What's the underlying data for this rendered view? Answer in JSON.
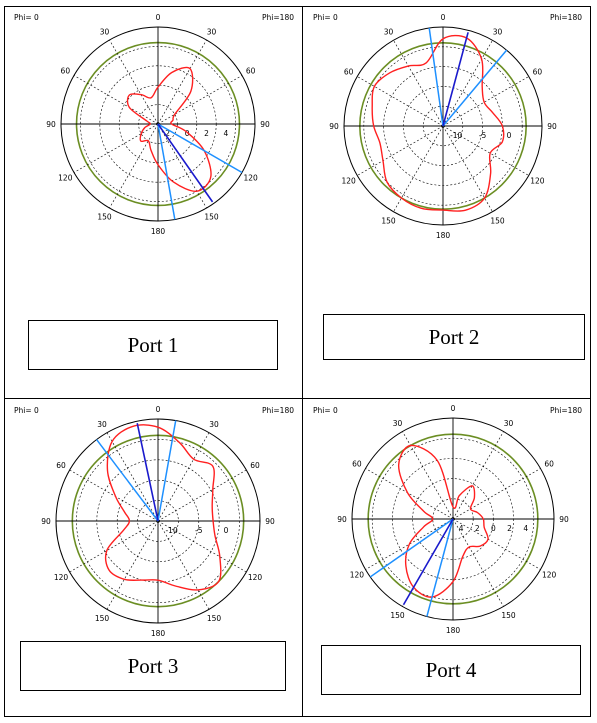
{
  "colors": {
    "pattern": "#ff2020",
    "reference_circle": "#6b8e23",
    "main_lobe_line": "#1a1acc",
    "beamwidth_line": "#1e90ff",
    "grid": "#000000"
  },
  "chart_data": [
    {
      "type": "polar-line",
      "caption": "Port 1",
      "phi_left": "Phi= 0",
      "phi_right": "Phi=180",
      "angle_labels": [
        "0",
        "30",
        "60",
        "90",
        "120",
        "150",
        "180",
        "150",
        "120",
        "90",
        "60",
        "30"
      ],
      "radial_labels": [
        "2",
        "0",
        "2",
        "4"
      ],
      "series_name": "",
      "theta_deg": [
        0,
        15,
        30,
        45,
        60,
        75,
        90,
        105,
        120,
        135,
        150,
        165,
        180,
        195,
        210,
        225,
        240,
        255,
        270,
        285,
        300,
        315,
        330,
        345
      ],
      "radius_fraction": [
        0.38,
        0.55,
        0.66,
        0.48,
        0.2,
        0.16,
        0.14,
        0.3,
        0.55,
        0.77,
        0.8,
        0.62,
        0.42,
        0.28,
        0.2,
        0.25,
        0.2,
        0.14,
        0.08,
        0.12,
        0.34,
        0.42,
        0.35,
        0.28
      ],
      "main_lobe_deg": 145,
      "beam_edges_deg": [
        120,
        170
      ]
    },
    {
      "type": "polar-line",
      "caption": "Port 2",
      "phi_left": "Phi=  0",
      "phi_right": "Phi=180",
      "angle_labels": [
        "0",
        "30",
        "60",
        "90",
        "120",
        "150",
        "180",
        "150",
        "120",
        "90",
        "60",
        "30"
      ],
      "radial_labels": [
        "-10",
        "-5",
        "0"
      ],
      "series_name": "",
      "theta_deg": [
        0,
        15,
        30,
        45,
        60,
        75,
        90,
        105,
        120,
        135,
        150,
        165,
        180,
        195,
        210,
        225,
        240,
        255,
        270,
        285,
        300,
        315,
        330,
        345
      ],
      "radius_fraction": [
        0.88,
        0.92,
        0.78,
        0.56,
        0.48,
        0.52,
        0.6,
        0.62,
        0.55,
        0.68,
        0.84,
        0.88,
        0.85,
        0.86,
        0.84,
        0.8,
        0.7,
        0.66,
        0.7,
        0.74,
        0.8,
        0.76,
        0.7,
        0.66
      ],
      "main_lobe_deg": 15,
      "beam_edges_deg": [
        -8,
        40
      ]
    },
    {
      "type": "polar-line",
      "caption": "Port 3",
      "phi_left": "Phi=  0",
      "phi_right": "Phi=180",
      "angle_labels": [
        "0",
        "30",
        "60",
        "90",
        "120",
        "150",
        "180",
        "150",
        "120",
        "90",
        "60",
        "30"
      ],
      "radial_labels": [
        "-10",
        "-5",
        "0"
      ],
      "series_name": "",
      "theta_deg": [
        0,
        15,
        30,
        45,
        60,
        75,
        90,
        105,
        120,
        135,
        150,
        165,
        180,
        195,
        210,
        225,
        240,
        255,
        270,
        285,
        300,
        315,
        330,
        345
      ],
      "radius_fraction": [
        0.92,
        0.8,
        0.7,
        0.76,
        0.62,
        0.55,
        0.54,
        0.58,
        0.7,
        0.84,
        0.78,
        0.66,
        0.58,
        0.6,
        0.66,
        0.68,
        0.58,
        0.35,
        0.28,
        0.34,
        0.48,
        0.7,
        0.9,
        0.96
      ],
      "main_lobe_deg": -12,
      "beam_edges_deg": [
        -37,
        10
      ]
    },
    {
      "type": "polar-line",
      "caption": "Port 4",
      "phi_left": "Phi=  0",
      "phi_right": "Phi=180",
      "angle_labels": [
        "0",
        "30",
        "60",
        "90",
        "120",
        "150",
        "180",
        "150",
        "120",
        "90",
        "60",
        "30"
      ],
      "radial_labels": [
        "4",
        "2",
        "0",
        "2",
        "4"
      ],
      "series_name": "",
      "theta_deg": [
        0,
        15,
        30,
        45,
        60,
        75,
        90,
        105,
        120,
        135,
        150,
        165,
        180,
        195,
        210,
        225,
        240,
        255,
        270,
        285,
        300,
        315,
        330,
        345
      ],
      "radius_fraction": [
        0.12,
        0.24,
        0.38,
        0.3,
        0.2,
        0.25,
        0.3,
        0.32,
        0.4,
        0.38,
        0.32,
        0.38,
        0.62,
        0.8,
        0.78,
        0.66,
        0.5,
        0.3,
        0.2,
        0.3,
        0.52,
        0.76,
        0.84,
        0.6
      ],
      "main_lobe_deg": 210,
      "beam_edges_deg": [
        235,
        195
      ]
    }
  ]
}
